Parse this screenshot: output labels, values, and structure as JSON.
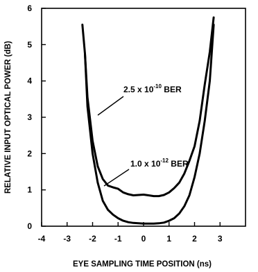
{
  "chart_data": {
    "type": "line",
    "title": "",
    "xlabel": "EYE SAMPLING TIME POSITION (ns)",
    "ylabel": "RELATIVE INPUT OPTICAL POWER (dB)",
    "xlim": [
      -4,
      4
    ],
    "ylim": [
      0,
      6
    ],
    "xticks": [
      -4,
      -3,
      -2,
      -1,
      0,
      1,
      2,
      3
    ],
    "yticks": [
      0,
      1,
      2,
      3,
      4,
      5,
      6
    ],
    "grid": false,
    "series": [
      {
        "label_parts": [
          "2.5 x 10",
          "-10",
          " BER"
        ],
        "x": [
          -2.4,
          -2.3,
          -2.2,
          -2.0,
          -1.8,
          -1.6,
          -1.4,
          -1.2,
          -1.0,
          -0.8,
          -0.6,
          -0.4,
          -0.2,
          0.0,
          0.2,
          0.4,
          0.6,
          0.8,
          1.0,
          1.2,
          1.4,
          1.6,
          1.8,
          2.0,
          2.2,
          2.4,
          2.6,
          2.75
        ],
        "y": [
          5.55,
          4.75,
          3.55,
          2.35,
          1.65,
          1.3,
          1.12,
          1.07,
          1.03,
          0.93,
          0.88,
          0.85,
          0.86,
          0.87,
          0.85,
          0.83,
          0.83,
          0.86,
          0.93,
          1.05,
          1.2,
          1.45,
          1.8,
          2.2,
          2.9,
          3.9,
          4.8,
          5.75
        ]
      },
      {
        "label_parts": [
          "1.0 x 10",
          "-12",
          " BER"
        ],
        "x": [
          -2.3,
          -2.2,
          -2.0,
          -1.8,
          -1.6,
          -1.4,
          -1.2,
          -1.0,
          -0.8,
          -0.6,
          -0.4,
          -0.2,
          0.0,
          0.2,
          0.4,
          0.6,
          0.8,
          1.0,
          1.2,
          1.4,
          1.6,
          1.8,
          2.0,
          2.2,
          2.4,
          2.6,
          2.75
        ],
        "y": [
          4.75,
          3.3,
          2.0,
          1.2,
          0.7,
          0.45,
          0.32,
          0.22,
          0.15,
          0.11,
          0.09,
          0.08,
          0.07,
          0.07,
          0.07,
          0.08,
          0.1,
          0.15,
          0.22,
          0.35,
          0.55,
          0.85,
          1.35,
          2.0,
          2.9,
          4.0,
          5.55
        ]
      }
    ]
  }
}
